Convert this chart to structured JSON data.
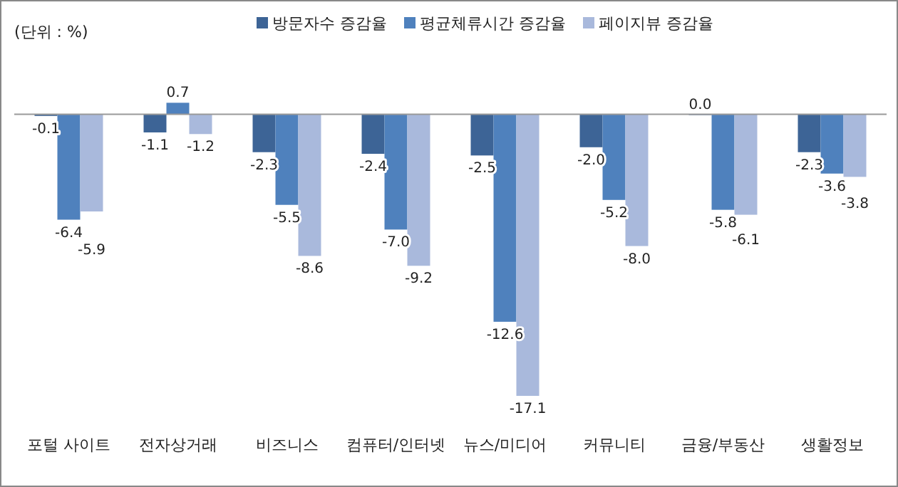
{
  "chart_data": {
    "type": "bar",
    "categories": [
      "포털 사이트",
      "전자상거래",
      "비즈니스",
      "컴퓨터/인터넷",
      "뉴스/미디어",
      "커뮤니티",
      "금융/부동산",
      "생활정보"
    ],
    "series": [
      {
        "name": "방문자수 증감율",
        "color": "#3d6496",
        "values": [
          -0.1,
          -1.1,
          -2.3,
          -2.4,
          -2.5,
          -2.0,
          0.0,
          -2.3
        ],
        "value_labels": [
          "-0.1",
          "-1.1",
          "-2.3",
          "-2.4",
          "-2.5",
          "-2.0",
          "0.0",
          "-2.3"
        ]
      },
      {
        "name": "평균체류시간 증감율",
        "color": "#4f81bd",
        "values": [
          -6.4,
          0.7,
          -5.5,
          -7.0,
          -12.6,
          -5.2,
          -5.8,
          -3.6
        ],
        "value_labels": [
          "-6.4",
          "0.7",
          "-5.5",
          "-7.0",
          "-12.6",
          "-5.2",
          "-5.8",
          "-3.6"
        ]
      },
      {
        "name": "페이지뷰 증감율",
        "color": "#a9b9dc",
        "values": [
          -5.9,
          -1.2,
          -8.6,
          -9.2,
          -17.1,
          -8.0,
          -6.1,
          -3.8
        ],
        "value_labels": [
          "-5.9",
          "-1.2",
          "-8.6",
          "-9.2",
          "-17.1",
          "-8.0",
          "-6.1",
          "-3.8"
        ]
      }
    ],
    "legend": "top",
    "annotations": [
      "(단위 : %)"
    ]
  }
}
